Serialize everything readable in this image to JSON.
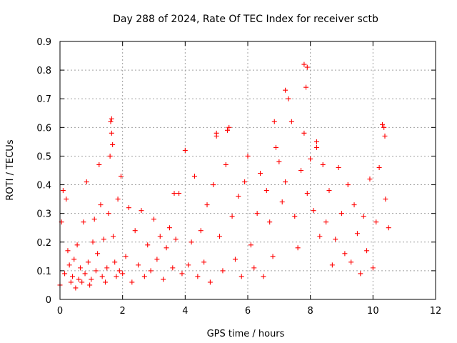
{
  "chart_data": {
    "type": "scatter",
    "title": "Day 288 of 2024, Rate Of TEC Index for receiver sctb",
    "xlabel": "GPS time / hours",
    "ylabel": "ROTI / TECUs",
    "xlim": [
      0,
      12
    ],
    "ylim": [
      0,
      0.9
    ],
    "xticks": [
      "0",
      "2",
      "4",
      "6",
      "8",
      "10",
      "12"
    ],
    "yticks": [
      "0",
      "0.1",
      "0.2",
      "0.3",
      "0.4",
      "0.5",
      "0.6",
      "0.7",
      "0.8",
      "0.9"
    ],
    "grid": true,
    "marker": "+",
    "color": "#ff0000",
    "series": [
      {
        "name": "ROTI",
        "x": [
          0.0,
          0.05,
          0.1,
          0.15,
          0.2,
          0.25,
          0.3,
          0.35,
          0.4,
          0.45,
          0.5,
          0.55,
          0.6,
          0.65,
          0.7,
          0.75,
          0.8,
          0.85,
          0.9,
          0.95,
          1.0,
          1.05,
          1.1,
          1.15,
          1.2,
          1.25,
          1.3,
          1.35,
          1.4,
          1.45,
          1.5,
          1.55,
          1.6,
          1.65,
          1.7,
          1.75,
          1.8,
          1.85,
          1.9,
          1.95,
          2.0,
          2.1,
          2.2,
          2.3,
          2.4,
          2.5,
          2.6,
          2.7,
          2.8,
          2.9,
          3.0,
          3.1,
          3.2,
          3.3,
          3.4,
          3.5,
          3.6,
          3.7,
          3.8,
          3.9,
          4.0,
          4.1,
          4.2,
          4.3,
          4.4,
          4.5,
          4.6,
          4.7,
          4.8,
          4.9,
          5.0,
          5.1,
          5.2,
          5.3,
          5.4,
          5.5,
          5.6,
          5.7,
          5.8,
          5.9,
          6.0,
          6.1,
          6.2,
          6.3,
          6.4,
          6.5,
          6.6,
          6.7,
          6.8,
          6.9,
          7.0,
          7.1,
          7.2,
          7.3,
          7.4,
          7.5,
          7.6,
          7.7,
          7.8,
          7.9,
          8.0,
          8.1,
          8.2,
          8.3,
          8.4,
          8.5,
          8.6,
          8.7,
          8.8,
          8.9,
          9.0,
          9.1,
          9.2,
          9.3,
          9.4,
          9.5,
          9.6,
          9.7,
          9.8,
          9.9,
          10.0,
          10.1,
          10.2,
          10.3,
          10.4,
          10.5,
          1.65,
          1.62,
          1.68,
          7.8,
          7.9,
          7.86,
          10.35,
          10.38,
          5.35,
          5.0,
          3.65,
          6.85,
          7.2,
          8.2
        ],
        "y": [
          0.05,
          0.27,
          0.38,
          0.09,
          0.35,
          0.17,
          0.12,
          0.06,
          0.08,
          0.14,
          0.04,
          0.19,
          0.07,
          0.11,
          0.06,
          0.27,
          0.09,
          0.41,
          0.13,
          0.05,
          0.07,
          0.2,
          0.28,
          0.1,
          0.16,
          0.47,
          0.33,
          0.08,
          0.21,
          0.06,
          0.11,
          0.3,
          0.5,
          0.58,
          0.22,
          0.13,
          0.08,
          0.35,
          0.1,
          0.43,
          0.09,
          0.15,
          0.32,
          0.06,
          0.24,
          0.12,
          0.31,
          0.08,
          0.19,
          0.1,
          0.28,
          0.14,
          0.22,
          0.07,
          0.18,
          0.25,
          0.11,
          0.21,
          0.37,
          0.09,
          0.52,
          0.12,
          0.2,
          0.43,
          0.08,
          0.24,
          0.13,
          0.33,
          0.06,
          0.4,
          0.57,
          0.22,
          0.1,
          0.47,
          0.6,
          0.29,
          0.14,
          0.36,
          0.08,
          0.41,
          0.5,
          0.19,
          0.11,
          0.3,
          0.44,
          0.08,
          0.38,
          0.27,
          0.15,
          0.53,
          0.48,
          0.34,
          0.41,
          0.7,
          0.62,
          0.29,
          0.18,
          0.45,
          0.58,
          0.37,
          0.49,
          0.31,
          0.55,
          0.22,
          0.47,
          0.27,
          0.38,
          0.12,
          0.21,
          0.46,
          0.3,
          0.16,
          0.4,
          0.13,
          0.33,
          0.23,
          0.09,
          0.29,
          0.17,
          0.42,
          0.11,
          0.27,
          0.46,
          0.61,
          0.35,
          0.25,
          0.63,
          0.62,
          0.54,
          0.82,
          0.81,
          0.74,
          0.6,
          0.57,
          0.59,
          0.58,
          0.37,
          0.62,
          0.73,
          0.53
        ]
      }
    ]
  }
}
